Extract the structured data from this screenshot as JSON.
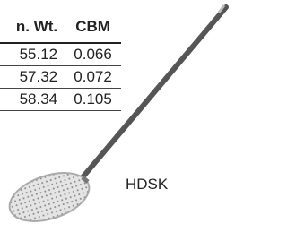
{
  "table": {
    "columns": [
      "n. Wt.",
      "CBM"
    ],
    "rows": [
      [
        55.12,
        0.066
      ],
      [
        57.32,
        0.072
      ],
      [
        58.34,
        0.105
      ]
    ]
  },
  "product": {
    "code": "HDSK"
  }
}
